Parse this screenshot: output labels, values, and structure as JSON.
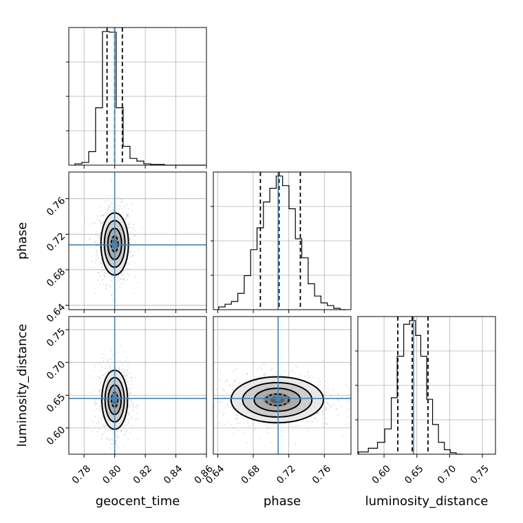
{
  "chart_data": {
    "type": "corner",
    "parameters": [
      "geocent_time",
      "phase",
      "luminosity_distance"
    ],
    "axis_labels": {
      "geocent_time": "geocent_time",
      "phase": "phase",
      "luminosity_distance": "luminosity_distance"
    },
    "ranges": {
      "geocent_time": [
        0.77,
        0.86
      ],
      "phase": [
        0.635,
        0.79
      ],
      "luminosity_distance": [
        0.56,
        0.77
      ]
    },
    "ticks": {
      "geocent_time": [
        "0.78",
        "0.80",
        "0.82",
        "0.84",
        "0.86"
      ],
      "phase": [
        "0.64",
        "0.68",
        "0.72",
        "0.76"
      ],
      "luminosity_distance": [
        "0.60",
        "0.65",
        "0.70",
        "0.75"
      ]
    },
    "truths": {
      "geocent_time": 0.8,
      "phase": 0.708,
      "luminosity_distance": 0.645
    },
    "quantiles": {
      "geocent_time": [
        0.795,
        0.8,
        0.805
      ],
      "phase": [
        0.688,
        0.709,
        0.733
      ],
      "luminosity_distance": [
        0.621,
        0.643,
        0.667
      ]
    },
    "histograms": {
      "geocent_time": {
        "edges": [
          0.774,
          0.7785,
          0.783,
          0.7875,
          0.792,
          0.7965,
          0.801,
          0.8055,
          0.81,
          0.8145,
          0.819,
          0.8235,
          0.828,
          0.8325,
          0.837,
          0.8415,
          0.846,
          0.8505,
          0.855,
          0.8595
        ],
        "counts": [
          2,
          4,
          20,
          85,
          198,
          197,
          85,
          28,
          10,
          6,
          2,
          1,
          1,
          0,
          0,
          0,
          0,
          0,
          0
        ]
      },
      "phase": {
        "edges": [
          0.641,
          0.6482,
          0.6554,
          0.6626,
          0.6698,
          0.677,
          0.6842,
          0.6914,
          0.6986,
          0.7058,
          0.713,
          0.7202,
          0.7274,
          0.7346,
          0.7418,
          0.749,
          0.7562,
          0.7634,
          0.7706,
          0.7778,
          0.785
        ],
        "counts": [
          4,
          8,
          12,
          24,
          50,
          88,
          120,
          158,
          178,
          196,
          182,
          148,
          104,
          76,
          38,
          20,
          10,
          6,
          2,
          0
        ]
      },
      "luminosity_distance": {
        "edges": [
          0.561,
          0.576,
          0.59,
          0.601,
          0.611,
          0.62,
          0.63,
          0.639,
          0.648,
          0.656,
          0.665,
          0.674,
          0.683,
          0.692,
          0.701,
          0.71,
          0.72
        ],
        "counts": [
          3,
          8,
          16,
          34,
          76,
          132,
          175,
          180,
          160,
          132,
          74,
          40,
          16,
          6,
          2,
          0
        ]
      }
    },
    "contours": {
      "phase_vs_geocent_time": {
        "center": [
          0.8,
          0.709
        ],
        "sigma": [
          0.0045,
          0.0175
        ],
        "levels": [
          0.5,
          1.0,
          1.5,
          2.0
        ]
      },
      "luminosity_distance_vs_geocent_time": {
        "center": [
          0.8,
          0.643
        ],
        "sigma": [
          0.0042,
          0.0225
        ],
        "levels": [
          0.5,
          1.0,
          1.5,
          2.0
        ]
      },
      "luminosity_distance_vs_phase": {
        "center": [
          0.707,
          0.643
        ],
        "sigma": [
          0.026,
          0.0175
        ],
        "levels": [
          0.5,
          1.0,
          1.5,
          2.0
        ]
      }
    },
    "grid": true,
    "colors": {
      "truth": "#4682b4",
      "histogram": "#000000",
      "contour": "#000000",
      "points": "#9a9a9a"
    }
  }
}
